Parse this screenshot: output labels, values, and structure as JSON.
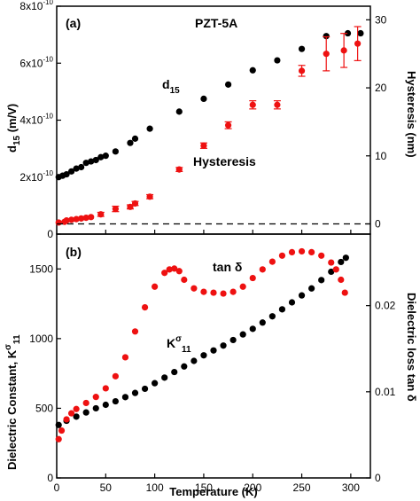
{
  "colors": {
    "black": "#000000",
    "red": "#ee1111",
    "dash": "#000000"
  },
  "chart_data": [
    {
      "type": "scatter",
      "panel_label": "(a)",
      "title": "PZT-5A",
      "xlabel": "",
      "ylabel_left": "d15 (m/V)",
      "ylabel_right": "Hysteresis (nm)",
      "xlim": [
        0,
        320
      ],
      "ylim_left": [
        0,
        8e-10
      ],
      "ylim_right": [
        -1.5,
        32
      ],
      "yticks_left": [
        "0",
        "2x10-10",
        "4x10-10",
        "6x10-10",
        "8x10-10"
      ],
      "yticks_left_values": [
        0,
        2e-10,
        4e-10,
        6e-10,
        8e-10
      ],
      "yticks_right": [
        "0",
        "10",
        "20",
        "30"
      ],
      "annotations": [
        "d15",
        "Hysteresis"
      ],
      "series": [
        {
          "name": "d15",
          "color": "#000000",
          "axis": "left",
          "x": [
            2,
            6,
            10,
            15,
            20,
            25,
            30,
            35,
            40,
            45,
            50,
            60,
            75,
            80,
            95,
            125,
            150,
            175,
            200,
            225,
            250,
            275,
            297,
            310
          ],
          "y": [
            2e-10,
            2.05e-10,
            2.1e-10,
            2.2e-10,
            2.3e-10,
            2.35e-10,
            2.5e-10,
            2.55e-10,
            2.6e-10,
            2.7e-10,
            2.75e-10,
            2.9e-10,
            3.2e-10,
            3.35e-10,
            3.7e-10,
            4.3e-10,
            4.75e-10,
            5.25e-10,
            5.75e-10,
            6.1e-10,
            6.5e-10,
            6.95e-10,
            7.05e-10,
            7.05e-10
          ]
        },
        {
          "name": "Hysteresis",
          "color": "#ee1111",
          "axis": "right",
          "x": [
            2,
            8,
            10,
            15,
            20,
            25,
            30,
            35,
            45,
            60,
            75,
            80,
            95,
            125,
            150,
            175,
            200,
            225,
            250,
            275,
            293,
            307
          ],
          "y": [
            0.2,
            0.3,
            0.5,
            0.6,
            0.7,
            0.8,
            0.9,
            1.0,
            1.4,
            2.2,
            2.5,
            3.0,
            4.0,
            8.0,
            11.5,
            14.5,
            17.5,
            17.5,
            22.5,
            25.0,
            25.5,
            26.5
          ],
          "err": [
            0,
            0,
            0,
            0,
            0,
            0,
            0,
            0,
            0.3,
            0.4,
            0.3,
            0.3,
            0.3,
            0.3,
            0.4,
            0.5,
            0.6,
            0.6,
            0.8,
            2.5,
            2.5,
            2.5
          ]
        },
        {
          "name": "baseline",
          "color": "#000000",
          "axis": "right",
          "style": "dashed",
          "x": [
            0,
            320
          ],
          "y": [
            0,
            0
          ]
        }
      ]
    },
    {
      "type": "scatter",
      "panel_label": "(b)",
      "xlabel": "Temperature (K)",
      "ylabel_left": "Dielectric Constant, Kσ11",
      "ylabel_right": "Dielectric loss  tan δ",
      "xlim": [
        0,
        320
      ],
      "ylim_left": [
        0,
        1750
      ],
      "ylim_right": [
        0,
        0.0283
      ],
      "xticks": [
        "0",
        "50",
        "100",
        "150",
        "200",
        "250",
        "300"
      ],
      "xticks_values": [
        0,
        50,
        100,
        150,
        200,
        250,
        300
      ],
      "yticks_left": [
        "0",
        "500",
        "1000",
        "1500"
      ],
      "yticks_left_values": [
        0,
        500,
        1000,
        1500
      ],
      "yticks_right": [
        "0",
        "0.01",
        "0.02"
      ],
      "yticks_right_values": [
        0,
        0.01,
        0.02
      ],
      "annotations": [
        "tan δ",
        "Kσ11"
      ],
      "series": [
        {
          "name": "K11",
          "color": "#000000",
          "axis": "left",
          "x": [
            2,
            10,
            20,
            30,
            40,
            50,
            60,
            70,
            80,
            90,
            100,
            110,
            120,
            130,
            140,
            150,
            160,
            170,
            180,
            190,
            200,
            210,
            220,
            230,
            240,
            250,
            260,
            270,
            280,
            290,
            295
          ],
          "y": [
            380,
            410,
            440,
            470,
            500,
            525,
            550,
            580,
            610,
            640,
            680,
            720,
            760,
            800,
            840,
            880,
            915,
            950,
            990,
            1030,
            1070,
            1115,
            1160,
            1210,
            1260,
            1310,
            1360,
            1420,
            1480,
            1550,
            1580
          ]
        },
        {
          "name": "tan δ",
          "color": "#ee1111",
          "axis": "right",
          "x": [
            2,
            5,
            10,
            15,
            20,
            30,
            40,
            50,
            60,
            70,
            80,
            90,
            100,
            110,
            115,
            120,
            125,
            130,
            140,
            150,
            160,
            170,
            180,
            190,
            200,
            210,
            220,
            230,
            240,
            250,
            260,
            270,
            280,
            285,
            290,
            294
          ],
          "y": [
            0.0045,
            0.0055,
            0.0068,
            0.0075,
            0.008,
            0.0087,
            0.0094,
            0.0104,
            0.0118,
            0.014,
            0.017,
            0.0198,
            0.0222,
            0.0238,
            0.0242,
            0.0243,
            0.024,
            0.023,
            0.022,
            0.0216,
            0.0215,
            0.0214,
            0.0216,
            0.0222,
            0.0232,
            0.0242,
            0.0251,
            0.0258,
            0.0262,
            0.0263,
            0.0262,
            0.0258,
            0.025,
            0.0242,
            0.023,
            0.0215
          ]
        }
      ]
    }
  ]
}
